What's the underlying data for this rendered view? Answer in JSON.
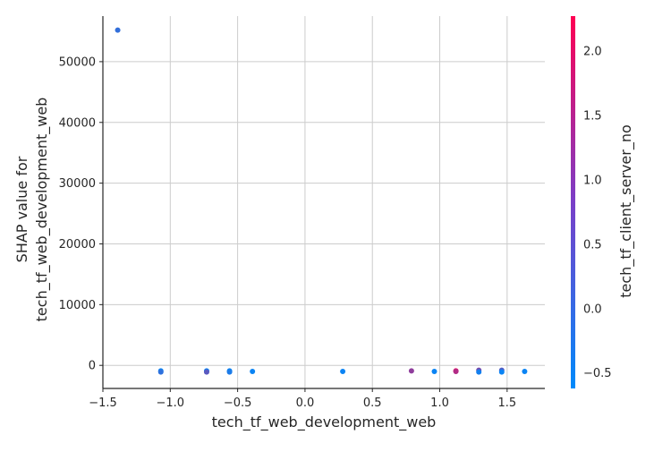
{
  "chart_data": {
    "type": "scatter",
    "title": "",
    "xlabel": "tech_tf_web_development_web",
    "ylabel_lines": [
      "SHAP value for",
      "tech_tf_web_development_web"
    ],
    "xlim": [
      -1.5,
      1.78
    ],
    "ylim": [
      -3800,
      57500
    ],
    "x_ticks": [
      -1.5,
      -1.0,
      -0.5,
      0.0,
      0.5,
      1.0,
      1.5
    ],
    "x_tick_labels": [
      "−1.5",
      "−1.0",
      "−0.5",
      "0.0",
      "0.5",
      "1.0",
      "1.5"
    ],
    "y_ticks": [
      0,
      10000,
      20000,
      30000,
      40000,
      50000
    ],
    "y_tick_labels": [
      "0",
      "10000",
      "20000",
      "30000",
      "40000",
      "50000"
    ],
    "grid": true,
    "colorbar": {
      "label": "tech_tf_client_server_no",
      "range": [
        -0.62,
        2.27
      ],
      "ticks": [
        -0.5,
        0.0,
        0.5,
        1.0,
        1.5,
        2.0
      ],
      "tick_labels": [
        "−0.5",
        "0.0",
        "0.5",
        "1.0",
        "1.5",
        "2.0"
      ],
      "colors": [
        "#008afb",
        "#ff0052"
      ]
    },
    "points": [
      {
        "x": -1.39,
        "y": 55200,
        "c": -0.05
      },
      {
        "x": -1.07,
        "y": -900,
        "c": -0.5
      },
      {
        "x": -1.07,
        "y": -1100,
        "c": -0.1
      },
      {
        "x": -0.73,
        "y": -900,
        "c": -0.45
      },
      {
        "x": -0.73,
        "y": -1100,
        "c": 0.4
      },
      {
        "x": -0.56,
        "y": -900,
        "c": -0.5
      },
      {
        "x": -0.56,
        "y": -1100,
        "c": -0.3
      },
      {
        "x": -0.39,
        "y": -1000,
        "c": -0.5
      },
      {
        "x": 0.28,
        "y": -1000,
        "c": -0.5
      },
      {
        "x": 0.79,
        "y": -900,
        "c": 1.0
      },
      {
        "x": 0.96,
        "y": -1000,
        "c": -0.5
      },
      {
        "x": 1.12,
        "y": -900,
        "c": 2.0
      },
      {
        "x": 1.12,
        "y": -1000,
        "c": 1.4
      },
      {
        "x": 1.29,
        "y": -800,
        "c": 0.7
      },
      {
        "x": 1.29,
        "y": -1100,
        "c": -0.4
      },
      {
        "x": 1.46,
        "y": -800,
        "c": 0.3
      },
      {
        "x": 1.46,
        "y": -1100,
        "c": -0.5
      },
      {
        "x": 1.63,
        "y": -1000,
        "c": -0.5
      }
    ]
  }
}
